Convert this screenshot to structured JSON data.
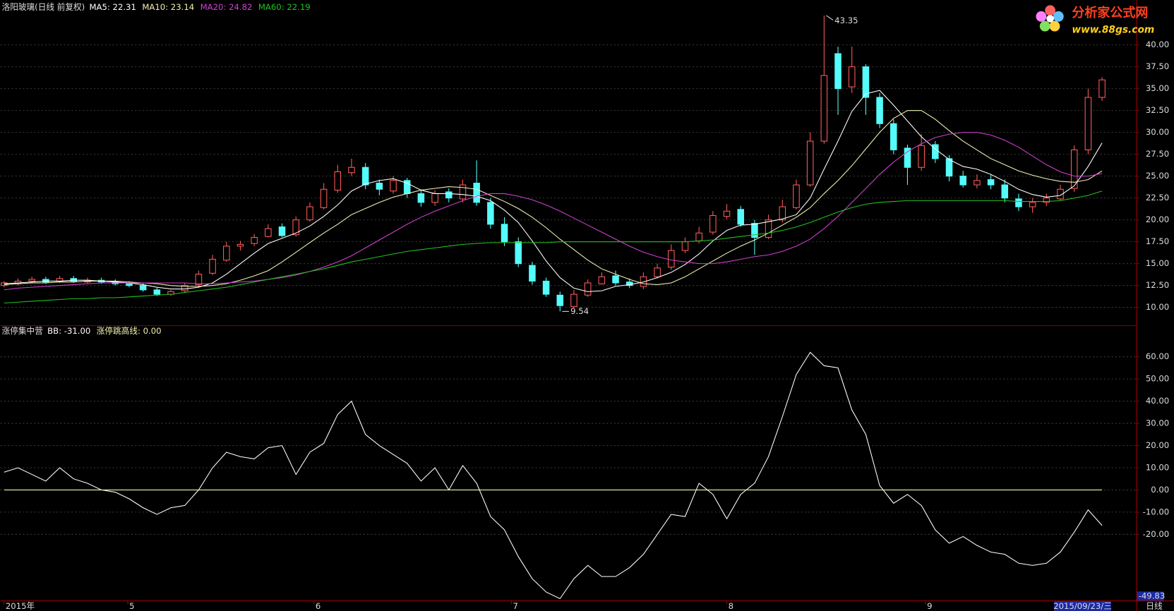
{
  "chart_data": [
    {
      "type": "candlestick",
      "title": "洛阳玻璃(日线 前复权)",
      "xlim": [
        -0.27,
        81.46
      ],
      "ylim": [
        7.95,
        45.13
      ],
      "yticks": [
        {
          "value": 10,
          "label": "10.00"
        },
        {
          "value": 12.5,
          "label": "12.50"
        },
        {
          "value": 15,
          "label": "15.00"
        },
        {
          "value": 17.5,
          "label": "17.50"
        },
        {
          "value": 20,
          "label": "20.00"
        },
        {
          "value": 22.5,
          "label": "22.50"
        },
        {
          "value": 25,
          "label": "25.00"
        },
        {
          "value": 27.5,
          "label": "27.50"
        },
        {
          "value": 30,
          "label": "30.00"
        },
        {
          "value": 32.5,
          "label": "32.50"
        },
        {
          "value": 35,
          "label": "35.00"
        },
        {
          "value": 37.5,
          "label": "37.50"
        },
        {
          "value": 40,
          "label": "40.00"
        }
      ],
      "grid": true,
      "up_color": "#ff5a5a",
      "down_color": "#54fcfc",
      "ohlc": {
        "o": [
          12.5,
          12.7,
          13.0,
          13.2,
          13.0,
          13.3,
          12.9,
          13.1,
          12.9,
          12.7,
          12.5,
          12.0,
          11.5,
          11.9,
          12.6,
          13.9,
          15.4,
          17.0,
          17.3,
          18.1,
          19.2,
          18.3,
          20.0,
          21.4,
          23.4,
          25.4,
          26.0,
          24.2,
          23.3,
          24.5,
          23.0,
          22.0,
          23.2,
          22.4,
          24.2,
          22.0,
          19.5,
          17.5,
          14.8,
          13.0,
          11.4,
          10.1,
          11.4,
          12.7,
          13.6,
          12.9,
          12.4,
          13.5,
          14.6,
          16.5,
          17.6,
          18.6,
          20.4,
          21.2,
          19.6,
          18.0,
          20.0,
          21.4,
          24.0,
          29.0,
          39.0,
          35.2,
          37.5,
          34.0,
          31.0,
          28.2,
          26.0,
          28.6,
          27.0,
          25.0,
          24.0,
          24.6,
          24.0,
          22.4,
          21.5,
          22.0,
          22.4,
          23.6,
          28.0,
          34.0
        ],
        "h": [
          13.0,
          13.3,
          13.5,
          13.5,
          13.6,
          13.6,
          13.4,
          13.4,
          13.2,
          13.0,
          12.8,
          12.3,
          12.0,
          12.8,
          14.2,
          16.0,
          17.5,
          17.6,
          18.4,
          19.5,
          19.6,
          20.4,
          22.0,
          24.2,
          26.3,
          27.0,
          26.5,
          24.6,
          25.0,
          24.8,
          23.5,
          23.4,
          23.6,
          24.6,
          26.8,
          22.5,
          20.3,
          18.0,
          15.2,
          13.4,
          11.8,
          12.0,
          13.2,
          14.0,
          14.2,
          13.3,
          14.0,
          15.0,
          17.2,
          18.0,
          19.2,
          21.0,
          21.8,
          21.6,
          20.0,
          20.6,
          22.3,
          24.6,
          30.0,
          43.35,
          39.8,
          39.8,
          37.8,
          34.5,
          31.5,
          28.6,
          29.8,
          29.0,
          27.4,
          25.6,
          25.2,
          25.2,
          24.6,
          23.0,
          22.5,
          23.0,
          24.0,
          28.5,
          35.0,
          36.3
        ],
        "l": [
          12.3,
          12.5,
          12.8,
          12.7,
          12.8,
          12.8,
          12.7,
          12.7,
          12.5,
          12.3,
          11.8,
          11.3,
          11.3,
          11.7,
          12.4,
          13.7,
          15.2,
          16.5,
          17.0,
          18.0,
          18.0,
          18.1,
          19.8,
          21.2,
          23.1,
          25.0,
          23.5,
          22.8,
          23.0,
          22.5,
          21.5,
          21.6,
          22.0,
          22.0,
          21.6,
          19.0,
          17.0,
          14.6,
          12.6,
          11.2,
          9.54,
          9.9,
          11.2,
          12.6,
          12.5,
          12.2,
          12.1,
          13.3,
          14.3,
          16.2,
          17.3,
          18.3,
          20.1,
          19.2,
          16.0,
          17.8,
          19.7,
          21.2,
          23.8,
          28.7,
          32.0,
          34.5,
          32.0,
          30.5,
          27.5,
          24.0,
          25.6,
          26.5,
          24.4,
          23.7,
          23.6,
          23.5,
          22.0,
          21.0,
          20.8,
          21.6,
          22.2,
          23.2,
          27.5,
          33.6
        ],
        "c": [
          12.8,
          13.0,
          13.2,
          12.9,
          13.3,
          13.0,
          13.1,
          12.9,
          12.7,
          12.5,
          12.0,
          11.5,
          11.8,
          12.5,
          13.8,
          15.5,
          17.0,
          17.2,
          18.0,
          19.0,
          18.2,
          20.0,
          21.5,
          23.5,
          25.5,
          26.0,
          24.0,
          23.5,
          24.5,
          23.0,
          22.0,
          23.0,
          22.5,
          24.0,
          22.0,
          19.5,
          17.5,
          15.0,
          13.0,
          11.5,
          10.2,
          11.5,
          12.8,
          13.5,
          12.8,
          12.5,
          13.5,
          14.5,
          16.5,
          17.5,
          18.5,
          20.5,
          21.0,
          19.5,
          18.0,
          20.0,
          21.5,
          24.0,
          29.0,
          36.5,
          35.0,
          37.5,
          34.0,
          31.0,
          28.0,
          26.0,
          28.5,
          27.0,
          25.0,
          24.0,
          24.5,
          24.0,
          22.5,
          21.5,
          22.0,
          22.5,
          23.5,
          28.0,
          34.0,
          36.0
        ]
      },
      "extremes": [
        {
          "index": 59,
          "field": "h"
        },
        {
          "index": 40,
          "field": "l"
        }
      ],
      "series": [
        {
          "name": "MA5",
          "legend": "MA5: 22.31",
          "color": "#ffffff",
          "values": [
            12.7,
            12.8,
            12.9,
            13.0,
            13.0,
            13.1,
            13.1,
            13.0,
            12.9,
            12.8,
            12.6,
            12.3,
            12.1,
            12.1,
            12.3,
            12.8,
            13.8,
            15.0,
            16.2,
            17.3,
            17.9,
            18.5,
            19.3,
            20.4,
            21.7,
            23.3,
            24.1,
            24.5,
            24.7,
            24.2,
            23.4,
            23.0,
            23.0,
            22.9,
            22.7,
            22.2,
            21.1,
            19.7,
            17.6,
            15.3,
            13.4,
            12.2,
            11.8,
            11.9,
            12.4,
            12.6,
            12.9,
            13.4,
            14.0,
            14.9,
            16.1,
            17.6,
            18.8,
            19.4,
            19.5,
            19.8,
            20.1,
            20.6,
            22.5,
            25.8,
            29.0,
            32.4,
            34.4,
            34.8,
            33.1,
            31.3,
            29.5,
            28.1,
            26.9,
            26.1,
            25.8,
            25.2,
            24.4,
            23.5,
            22.9,
            22.6,
            22.8,
            23.9,
            26.1,
            28.8
          ]
        },
        {
          "name": "MA10",
          "legend": "MA10: 23.14",
          "color": "#f2f2b0",
          "values": [
            12.6,
            12.7,
            12.8,
            12.8,
            12.9,
            12.9,
            13.0,
            13.0,
            13.0,
            12.9,
            12.8,
            12.7,
            12.5,
            12.4,
            12.4,
            12.5,
            12.7,
            13.1,
            13.6,
            14.2,
            15.2,
            16.3,
            17.4,
            18.5,
            19.5,
            20.6,
            21.3,
            22.0,
            22.6,
            23.0,
            23.4,
            23.6,
            23.8,
            23.7,
            23.5,
            22.8,
            22.1,
            21.3,
            20.3,
            19.1,
            17.8,
            16.6,
            15.4,
            14.4,
            13.8,
            13.2,
            12.7,
            12.6,
            12.8,
            13.5,
            14.4,
            15.3,
            16.2,
            17.0,
            17.7,
            18.5,
            19.4,
            20.3,
            21.4,
            23.0,
            24.5,
            26.2,
            28.1,
            30.0,
            31.6,
            32.5,
            32.5,
            31.5,
            30.2,
            29.0,
            28.0,
            27.0,
            26.3,
            25.6,
            25.1,
            24.7,
            24.4,
            24.3,
            24.6,
            25.6
          ]
        },
        {
          "name": "MA20",
          "legend": "MA20: 24.82",
          "color": "#d040d0",
          "values": [
            12.0,
            12.2,
            12.3,
            12.4,
            12.5,
            12.6,
            12.7,
            12.8,
            12.8,
            12.8,
            12.8,
            12.8,
            12.8,
            12.8,
            12.7,
            12.7,
            12.8,
            12.9,
            13.0,
            13.2,
            13.4,
            13.7,
            14.1,
            14.6,
            15.2,
            15.9,
            16.8,
            17.7,
            18.6,
            19.5,
            20.3,
            21.0,
            21.6,
            22.2,
            22.7,
            23.0,
            23.0,
            22.7,
            22.3,
            21.7,
            21.0,
            20.2,
            19.4,
            18.6,
            17.8,
            17.0,
            16.3,
            15.8,
            15.4,
            15.2,
            15.0,
            15.0,
            15.2,
            15.5,
            15.8,
            16.0,
            16.4,
            17.0,
            17.8,
            19.0,
            20.4,
            22.0,
            23.6,
            25.2,
            26.6,
            27.8,
            28.7,
            29.4,
            29.8,
            30.0,
            30.0,
            29.7,
            29.1,
            28.3,
            27.3,
            26.3,
            25.5,
            25.0,
            25.0,
            25.3
          ]
        },
        {
          "name": "MA60",
          "legend": "MA60: 22.19",
          "color": "#22c022",
          "values": [
            10.5,
            10.6,
            10.7,
            10.8,
            10.9,
            11.0,
            11.0,
            11.1,
            11.1,
            11.2,
            11.3,
            11.4,
            11.5,
            11.7,
            11.9,
            12.1,
            12.3,
            12.6,
            12.9,
            13.2,
            13.5,
            13.8,
            14.1,
            14.4,
            14.8,
            15.2,
            15.5,
            15.8,
            16.1,
            16.4,
            16.6,
            16.8,
            17.0,
            17.2,
            17.3,
            17.4,
            17.4,
            17.4,
            17.4,
            17.4,
            17.5,
            17.5,
            17.5,
            17.5,
            17.5,
            17.5,
            17.5,
            17.5,
            17.5,
            17.5,
            17.6,
            17.7,
            17.9,
            18.1,
            18.3,
            18.5,
            18.8,
            19.2,
            19.7,
            20.3,
            20.9,
            21.4,
            21.8,
            22.0,
            22.1,
            22.2,
            22.2,
            22.2,
            22.2,
            22.2,
            22.2,
            22.2,
            22.2,
            22.1,
            22.1,
            22.1,
            22.2,
            22.5,
            22.8,
            23.3
          ]
        }
      ]
    },
    {
      "type": "line",
      "title": "涨停集中营",
      "xlim": [
        -0.27,
        81.46
      ],
      "ylim": [
        -49.83,
        69.8
      ],
      "yticks": [
        {
          "value": -20,
          "label": "-20.00"
        },
        {
          "value": -10,
          "label": "-10.00"
        },
        {
          "value": 0,
          "label": "0.00"
        },
        {
          "value": 10,
          "label": "10.00"
        },
        {
          "value": 20,
          "label": "20.00"
        },
        {
          "value": 30,
          "label": "30.00"
        },
        {
          "value": 40,
          "label": "40.00"
        },
        {
          "value": 50,
          "label": "50.00"
        },
        {
          "value": 60,
          "label": "60.00"
        }
      ],
      "grid": true,
      "xticks": [
        {
          "value": 0,
          "label": "2015年"
        },
        {
          "value": 8.9,
          "label": "5"
        },
        {
          "value": 22.3,
          "label": "6"
        },
        {
          "value": 36.5,
          "label": "7"
        },
        {
          "value": 52,
          "label": "8"
        },
        {
          "value": 66.3,
          "label": "9"
        }
      ],
      "cursor": {
        "value": 77.6,
        "label": "2015/09/23/三"
      },
      "period": "日线",
      "series": [
        {
          "name": "BB",
          "legend": "BB: -31.00",
          "color": "#ffffff",
          "values": [
            8,
            10,
            7,
            4,
            10,
            5,
            3,
            0,
            -1,
            -4,
            -8,
            -11,
            -8,
            -7,
            0,
            10,
            17,
            15,
            14,
            19,
            20,
            7,
            17,
            21,
            34,
            40,
            25,
            20,
            16,
            12,
            4,
            10,
            0,
            11,
            3,
            -12,
            -18,
            -30,
            -40,
            -46,
            -49,
            -40,
            -34,
            -39,
            -39,
            -35,
            -29,
            -20,
            -11,
            -12,
            3,
            -2,
            -13,
            -2,
            3,
            15,
            33,
            52,
            62,
            56,
            55,
            36,
            25,
            2,
            -6,
            -2,
            -7,
            -18,
            -24,
            -21,
            -25,
            -28,
            -29,
            -33,
            -34,
            -33,
            -28,
            -19,
            -9,
            -16
          ]
        },
        {
          "name": "涨停跳高线",
          "legend": "涨停跳高线: 0.00",
          "color": "#f2f2b0",
          "level": 0
        }
      ]
    }
  ],
  "watermark": {
    "title": "分析家公式网",
    "url": "www.88gs.com"
  }
}
